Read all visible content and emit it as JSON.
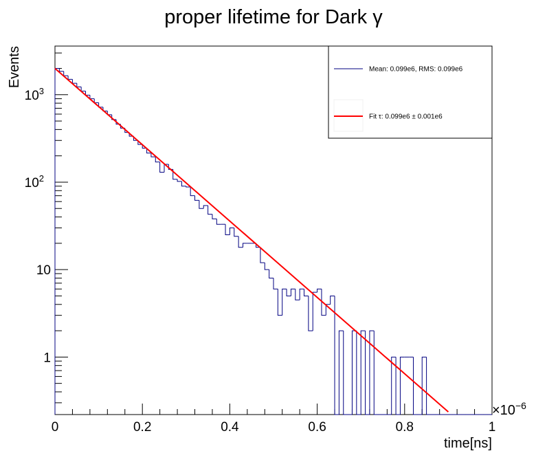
{
  "chart_data": {
    "type": "histogram-with-fit",
    "title": "proper lifetime for Dark γ",
    "xlabel": "time[ns]",
    "ylabel": "Events",
    "x_exponent_label": "×10",
    "x_exponent_power": "−6",
    "xlim": [
      0,
      1
    ],
    "ylim": [
      0.22,
      3600
    ],
    "yscale": "log",
    "grid": false,
    "x_ticks": [
      {
        "value": 0,
        "label": "0"
      },
      {
        "value": 0.2,
        "label": "0.2"
      },
      {
        "value": 0.4,
        "label": "0.4"
      },
      {
        "value": 0.6,
        "label": "0.6"
      },
      {
        "value": 0.8,
        "label": "0.8"
      },
      {
        "value": 1,
        "label": "1"
      }
    ],
    "y_ticks": [
      {
        "value": 1,
        "label": "1"
      },
      {
        "value": 10,
        "label": "10"
      },
      {
        "value": 100,
        "label": "10",
        "sup": "2"
      },
      {
        "value": 1000,
        "label": "10",
        "sup": "3"
      }
    ],
    "bin_width": 0.01,
    "histogram": {
      "name": "Mean: 0.099e6, RMS: 0.099e6",
      "color": "#000080",
      "bins_start": 0,
      "values": [
        2000,
        1850,
        1650,
        1500,
        1350,
        1230,
        1100,
        990,
        900,
        810,
        720,
        650,
        590,
        520,
        460,
        415,
        370,
        335,
        300,
        270,
        245,
        215,
        195,
        170,
        130,
        160,
        140,
        108,
        102,
        90,
        88,
        70,
        62,
        50,
        54,
        43,
        38,
        33,
        33,
        25,
        30,
        24,
        18,
        20,
        20,
        20,
        18,
        12,
        10,
        8,
        6,
        3,
        6,
        5,
        6,
        4.5,
        6,
        5,
        2,
        5.5,
        6,
        3,
        4,
        5,
        0,
        2,
        0,
        0,
        2,
        0,
        2,
        0,
        2,
        0,
        0,
        0,
        0,
        1,
        0,
        1,
        1,
        1,
        0,
        0,
        1,
        0,
        0,
        0,
        0,
        0,
        0,
        0,
        0,
        0,
        0,
        0,
        0,
        0,
        0,
        0
      ]
    },
    "fit": {
      "name": "Fit τ: 0.099e6 ± 0.001e6",
      "color": "#ff0000",
      "amplitude": 2000,
      "tau": 0.0995,
      "x_range": [
        0,
        0.9
      ]
    },
    "legend_position": "top-right"
  }
}
